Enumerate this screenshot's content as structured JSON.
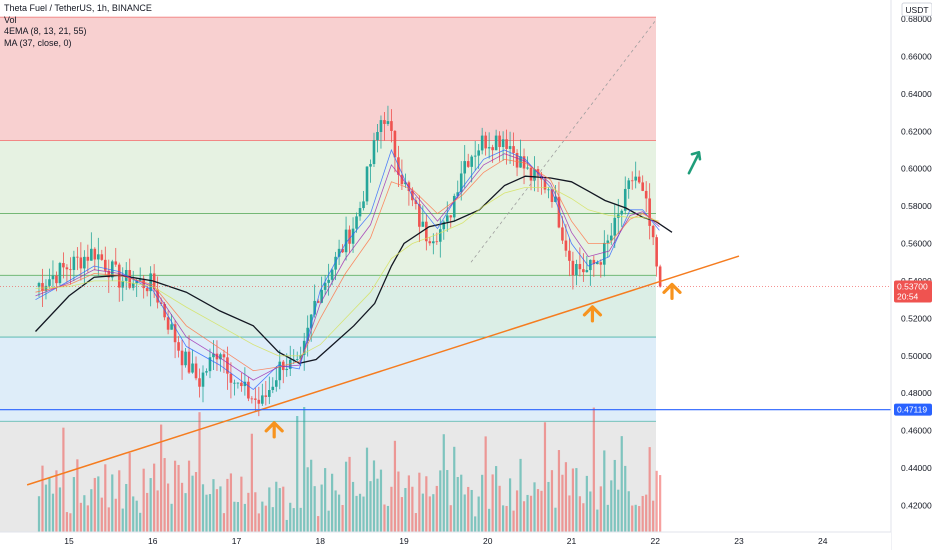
{
  "legend": {
    "symbol": "Theta Fuel / TetherUS, 1h, BINANCE",
    "vol": "Vol",
    "ema": "4EMA (8, 13, 21, 55)",
    "ma": "MA (37, close, 0)"
  },
  "currency": "USDT",
  "colors": {
    "up": "#26a69a",
    "down": "#ef5350",
    "trendline": "#f57c1f",
    "arrow_orange": "#f7931e",
    "arrow_green": "#1f9d7a",
    "ma": "#131722",
    "price_badge": "#ef5350",
    "blue_line": "#2962ff"
  },
  "chart_data": {
    "type": "candlestick",
    "symbol": "Theta Fuel / TetherUS",
    "interval": "1h",
    "exchange": "BINANCE",
    "y_ticks": [
      "0.68000",
      "0.66000",
      "0.64000",
      "0.62000",
      "0.60000",
      "0.58000",
      "0.56000",
      "0.54000",
      "0.52000",
      "0.50000",
      "0.48000",
      "0.46000",
      "0.44000",
      "0.42000"
    ],
    "x_ticks": [
      "15",
      "16",
      "17",
      "18",
      "19",
      "20",
      "21",
      "22",
      "23",
      "24"
    ],
    "ylim": [
      0.406,
      0.681
    ],
    "last_price": {
      "label": "0.53700",
      "countdown": "20:54",
      "value": 0.537
    },
    "marked_price": {
      "label": "0.47119",
      "value": 0.47119
    },
    "zones": [
      {
        "from": 0.615,
        "to": 0.681,
        "color": "#f8d0d0"
      },
      {
        "from": 0.543,
        "to": 0.615,
        "color": "#e6f2e2"
      },
      {
        "from": 0.51,
        "to": 0.543,
        "color": "#dbeee6"
      },
      {
        "from": 0.465,
        "to": 0.51,
        "color": "#deedf9"
      },
      {
        "from": 0.406,
        "to": 0.465,
        "color": "#e8e8e8"
      }
    ],
    "levels": [
      0.681,
      0.615,
      0.576,
      0.543,
      0.51,
      0.465
    ],
    "trendline": [
      [
        -0.5,
        0.431
      ],
      [
        8.0,
        0.5533
      ]
    ],
    "channel_line": [
      [
        4.8,
        0.55
      ],
      [
        7.0,
        0.679
      ]
    ],
    "series": [
      {
        "name": "MA (37, close, 0)",
        "points": [
          [
            -0.4,
            0.513
          ],
          [
            0.0,
            0.532
          ],
          [
            0.3,
            0.542
          ],
          [
            0.6,
            0.543
          ],
          [
            1.0,
            0.54
          ],
          [
            1.4,
            0.534
          ],
          [
            1.8,
            0.524
          ],
          [
            2.2,
            0.516
          ],
          [
            2.5,
            0.502
          ],
          [
            2.75,
            0.496
          ],
          [
            2.95,
            0.498
          ],
          [
            3.15,
            0.506
          ],
          [
            3.4,
            0.516
          ],
          [
            3.65,
            0.528
          ],
          [
            3.85,
            0.548
          ],
          [
            4.0,
            0.56
          ],
          [
            4.3,
            0.569
          ],
          [
            4.6,
            0.572
          ],
          [
            4.9,
            0.578
          ],
          [
            5.2,
            0.591
          ],
          [
            5.45,
            0.596
          ],
          [
            5.75,
            0.595
          ],
          [
            6.0,
            0.593
          ],
          [
            6.2,
            0.588
          ],
          [
            6.4,
            0.583
          ],
          [
            6.65,
            0.579
          ],
          [
            6.85,
            0.574
          ],
          [
            7.0,
            0.572
          ],
          [
            7.2,
            0.566
          ]
        ]
      },
      {
        "name": "EMA 8",
        "color": "#2962ff",
        "points": [
          [
            -0.4,
            0.53
          ],
          [
            0.0,
            0.54
          ],
          [
            0.3,
            0.548
          ],
          [
            0.6,
            0.545
          ],
          [
            1.0,
            0.535
          ],
          [
            1.4,
            0.505
          ],
          [
            1.8,
            0.495
          ],
          [
            2.2,
            0.482
          ],
          [
            2.5,
            0.495
          ],
          [
            2.75,
            0.493
          ],
          [
            3.0,
            0.535
          ],
          [
            3.3,
            0.56
          ],
          [
            3.6,
            0.576
          ],
          [
            3.85,
            0.61
          ],
          [
            4.1,
            0.585
          ],
          [
            4.4,
            0.568
          ],
          [
            4.7,
            0.59
          ],
          [
            4.95,
            0.605
          ],
          [
            5.2,
            0.61
          ],
          [
            5.45,
            0.605
          ],
          [
            5.75,
            0.59
          ],
          [
            6.0,
            0.56
          ],
          [
            6.2,
            0.548
          ],
          [
            6.45,
            0.553
          ],
          [
            6.7,
            0.578
          ],
          [
            6.85,
            0.578
          ],
          [
            7.05,
            0.567
          ]
        ]
      },
      {
        "name": "EMA 13",
        "color": "#9c27b0",
        "points": [
          [
            -0.4,
            0.532
          ],
          [
            0.0,
            0.539
          ],
          [
            0.3,
            0.546
          ],
          [
            0.6,
            0.544
          ],
          [
            1.0,
            0.537
          ],
          [
            1.4,
            0.51
          ],
          [
            1.8,
            0.499
          ],
          [
            2.2,
            0.487
          ],
          [
            2.5,
            0.494
          ],
          [
            2.75,
            0.495
          ],
          [
            3.0,
            0.528
          ],
          [
            3.3,
            0.552
          ],
          [
            3.6,
            0.57
          ],
          [
            3.85,
            0.602
          ],
          [
            4.1,
            0.588
          ],
          [
            4.4,
            0.572
          ],
          [
            4.7,
            0.588
          ],
          [
            4.95,
            0.602
          ],
          [
            5.2,
            0.608
          ],
          [
            5.45,
            0.604
          ],
          [
            5.75,
            0.592
          ],
          [
            6.0,
            0.566
          ],
          [
            6.2,
            0.553
          ],
          [
            6.45,
            0.556
          ],
          [
            6.7,
            0.575
          ],
          [
            6.85,
            0.577
          ],
          [
            7.05,
            0.569
          ]
        ]
      },
      {
        "name": "EMA 21",
        "color": "#ff7043",
        "points": [
          [
            -0.4,
            0.534
          ],
          [
            0.0,
            0.538
          ],
          [
            0.3,
            0.544
          ],
          [
            0.6,
            0.543
          ],
          [
            1.0,
            0.538
          ],
          [
            1.4,
            0.516
          ],
          [
            1.8,
            0.504
          ],
          [
            2.2,
            0.492
          ],
          [
            2.5,
            0.494
          ],
          [
            2.75,
            0.497
          ],
          [
            3.0,
            0.52
          ],
          [
            3.3,
            0.544
          ],
          [
            3.6,
            0.563
          ],
          [
            3.85,
            0.593
          ],
          [
            4.1,
            0.589
          ],
          [
            4.4,
            0.576
          ],
          [
            4.7,
            0.586
          ],
          [
            4.95,
            0.598
          ],
          [
            5.2,
            0.605
          ],
          [
            5.45,
            0.603
          ],
          [
            5.75,
            0.594
          ],
          [
            6.0,
            0.572
          ],
          [
            6.2,
            0.56
          ],
          [
            6.45,
            0.56
          ],
          [
            6.7,
            0.573
          ],
          [
            6.85,
            0.576
          ],
          [
            7.05,
            0.571
          ]
        ]
      },
      {
        "name": "EMA 55",
        "color": "#d4e157",
        "points": [
          [
            -0.4,
            0.536
          ],
          [
            0.0,
            0.537
          ],
          [
            0.3,
            0.54
          ],
          [
            0.6,
            0.54
          ],
          [
            1.0,
            0.537
          ],
          [
            1.4,
            0.526
          ],
          [
            1.8,
            0.516
          ],
          [
            2.2,
            0.506
          ],
          [
            2.5,
            0.5
          ],
          [
            2.75,
            0.5
          ],
          [
            3.0,
            0.506
          ],
          [
            3.3,
            0.52
          ],
          [
            3.6,
            0.534
          ],
          [
            3.85,
            0.552
          ],
          [
            4.1,
            0.56
          ],
          [
            4.4,
            0.565
          ],
          [
            4.7,
            0.571
          ],
          [
            4.95,
            0.58
          ],
          [
            5.2,
            0.587
          ],
          [
            5.45,
            0.59
          ],
          [
            5.75,
            0.59
          ],
          [
            6.0,
            0.584
          ],
          [
            6.2,
            0.578
          ],
          [
            6.45,
            0.575
          ],
          [
            6.7,
            0.574
          ],
          [
            6.85,
            0.574
          ],
          [
            7.05,
            0.572
          ]
        ]
      }
    ],
    "price_anchors": [
      [
        -0.4,
        0.537
      ],
      [
        0.0,
        0.548
      ],
      [
        0.3,
        0.556
      ],
      [
        0.6,
        0.541
      ],
      [
        1.0,
        0.538
      ],
      [
        1.35,
        0.5
      ],
      [
        1.55,
        0.486
      ],
      [
        1.8,
        0.505
      ],
      [
        2.0,
        0.484
      ],
      [
        2.3,
        0.474
      ],
      [
        2.55,
        0.497
      ],
      [
        2.75,
        0.492
      ],
      [
        2.95,
        0.532
      ],
      [
        3.2,
        0.552
      ],
      [
        3.45,
        0.575
      ],
      [
        3.75,
        0.631
      ],
      [
        4.0,
        0.592
      ],
      [
        4.25,
        0.565
      ],
      [
        4.5,
        0.568
      ],
      [
        4.7,
        0.603
      ],
      [
        4.95,
        0.615
      ],
      [
        5.2,
        0.617
      ],
      [
        5.5,
        0.596
      ],
      [
        5.75,
        0.59
      ],
      [
        6.0,
        0.549
      ],
      [
        6.2,
        0.545
      ],
      [
        6.4,
        0.556
      ],
      [
        6.6,
        0.578
      ],
      [
        6.75,
        0.598
      ],
      [
        6.9,
        0.578
      ],
      [
        7.05,
        0.537
      ]
    ],
    "annotations": [
      {
        "type": "arrow-up",
        "x": 2.45,
        "value": 0.462,
        "color": "#f7931e"
      },
      {
        "type": "arrow-up",
        "x": 6.25,
        "value": 0.524,
        "color": "#f7931e"
      },
      {
        "type": "arrow-up",
        "x": 7.2,
        "value": 0.536,
        "color": "#f7931e"
      },
      {
        "type": "arrow-diag",
        "x": 7.45,
        "value": 0.604,
        "color": "#1f9d7a"
      }
    ]
  }
}
